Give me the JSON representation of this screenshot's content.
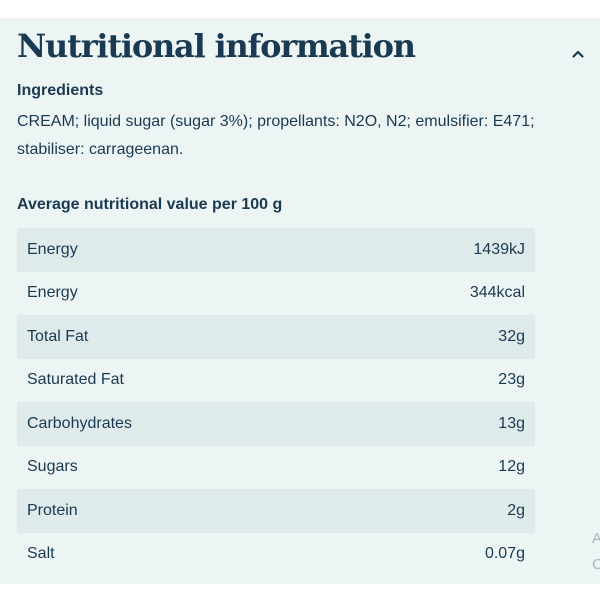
{
  "section": {
    "title": "Nutritional information",
    "toggle_icon": "chevron-up-icon"
  },
  "ingredients": {
    "heading": "Ingredients",
    "text": "CREAM; liquid sugar (sugar 3%); propellants: N2O, N2; emulsifier: E471; stabiliser: carrageenan."
  },
  "nutrition": {
    "heading": "Average nutritional value per 100 g",
    "rows": [
      {
        "label": "Energy",
        "value": "1439kJ"
      },
      {
        "label": "Energy",
        "value": "344kcal"
      },
      {
        "label": "Total Fat",
        "value": "32g"
      },
      {
        "label": "Saturated Fat",
        "value": "23g"
      },
      {
        "label": "Carbohydrates",
        "value": "13g"
      },
      {
        "label": "Sugars",
        "value": "12g"
      },
      {
        "label": "Protein",
        "value": "2g"
      },
      {
        "label": "Salt",
        "value": "0.07g"
      }
    ]
  },
  "edge_cutoff": {
    "line1": "A",
    "line2": "C"
  },
  "colors": {
    "panel_bg": "#edf5f4",
    "row_shade": "#dfeaea",
    "text": "#1a3a52"
  }
}
